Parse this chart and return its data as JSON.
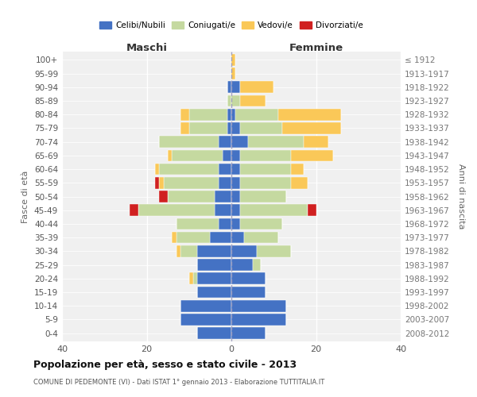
{
  "age_groups": [
    "0-4",
    "5-9",
    "10-14",
    "15-19",
    "20-24",
    "25-29",
    "30-34",
    "35-39",
    "40-44",
    "45-49",
    "50-54",
    "55-59",
    "60-64",
    "65-69",
    "70-74",
    "75-79",
    "80-84",
    "85-89",
    "90-94",
    "95-99",
    "100+"
  ],
  "birth_years": [
    "2008-2012",
    "2003-2007",
    "1998-2002",
    "1993-1997",
    "1988-1992",
    "1983-1987",
    "1978-1982",
    "1973-1977",
    "1968-1972",
    "1963-1967",
    "1958-1962",
    "1953-1957",
    "1948-1952",
    "1943-1947",
    "1938-1942",
    "1933-1937",
    "1928-1932",
    "1923-1927",
    "1918-1922",
    "1913-1917",
    "≤ 1912"
  ],
  "colors": {
    "celibi": "#4472c4",
    "coniugati": "#c5d9a0",
    "vedovi": "#fac858",
    "divorziati": "#d02020"
  },
  "maschi": {
    "celibi": [
      8,
      12,
      12,
      8,
      8,
      8,
      8,
      5,
      3,
      4,
      4,
      3,
      3,
      2,
      3,
      1,
      1,
      0,
      1,
      0,
      0
    ],
    "coniugati": [
      0,
      0,
      0,
      0,
      1,
      0,
      4,
      8,
      10,
      18,
      11,
      13,
      14,
      12,
      14,
      9,
      9,
      1,
      0,
      0,
      0
    ],
    "vedovi": [
      0,
      0,
      0,
      0,
      1,
      0,
      1,
      1,
      0,
      0,
      0,
      1,
      1,
      1,
      0,
      2,
      2,
      0,
      0,
      0,
      0
    ],
    "divorziati": [
      0,
      0,
      0,
      0,
      0,
      0,
      0,
      0,
      0,
      2,
      2,
      1,
      0,
      0,
      0,
      0,
      0,
      0,
      0,
      0,
      0
    ]
  },
  "femmine": {
    "celibi": [
      8,
      13,
      13,
      8,
      8,
      5,
      6,
      3,
      2,
      2,
      2,
      2,
      2,
      2,
      4,
      2,
      1,
      0,
      2,
      0,
      0
    ],
    "coniugati": [
      0,
      0,
      0,
      0,
      0,
      2,
      8,
      8,
      10,
      16,
      11,
      12,
      12,
      12,
      13,
      10,
      10,
      2,
      0,
      0,
      0
    ],
    "vedovi": [
      0,
      0,
      0,
      0,
      0,
      0,
      0,
      0,
      0,
      0,
      0,
      4,
      3,
      10,
      6,
      14,
      15,
      6,
      8,
      1,
      1
    ],
    "divorziati": [
      0,
      0,
      0,
      0,
      0,
      0,
      0,
      0,
      0,
      2,
      0,
      0,
      0,
      0,
      0,
      0,
      0,
      0,
      0,
      0,
      0
    ]
  },
  "xlim": 40,
  "title_main": "Popolazione per età, sesso e stato civile - 2013",
  "title_sub": "COMUNE DI PEDEMONTE (VI) - Dati ISTAT 1° gennaio 2013 - Elaborazione TUTTITALIA.IT",
  "ylabel_left": "Fasce di età",
  "ylabel_right": "Anni di nascita",
  "xlabel_maschi": "Maschi",
  "xlabel_femmine": "Femmine",
  "bg_color": "#f0f0f0",
  "grid_color": "#cccccc",
  "bar_height": 0.85
}
